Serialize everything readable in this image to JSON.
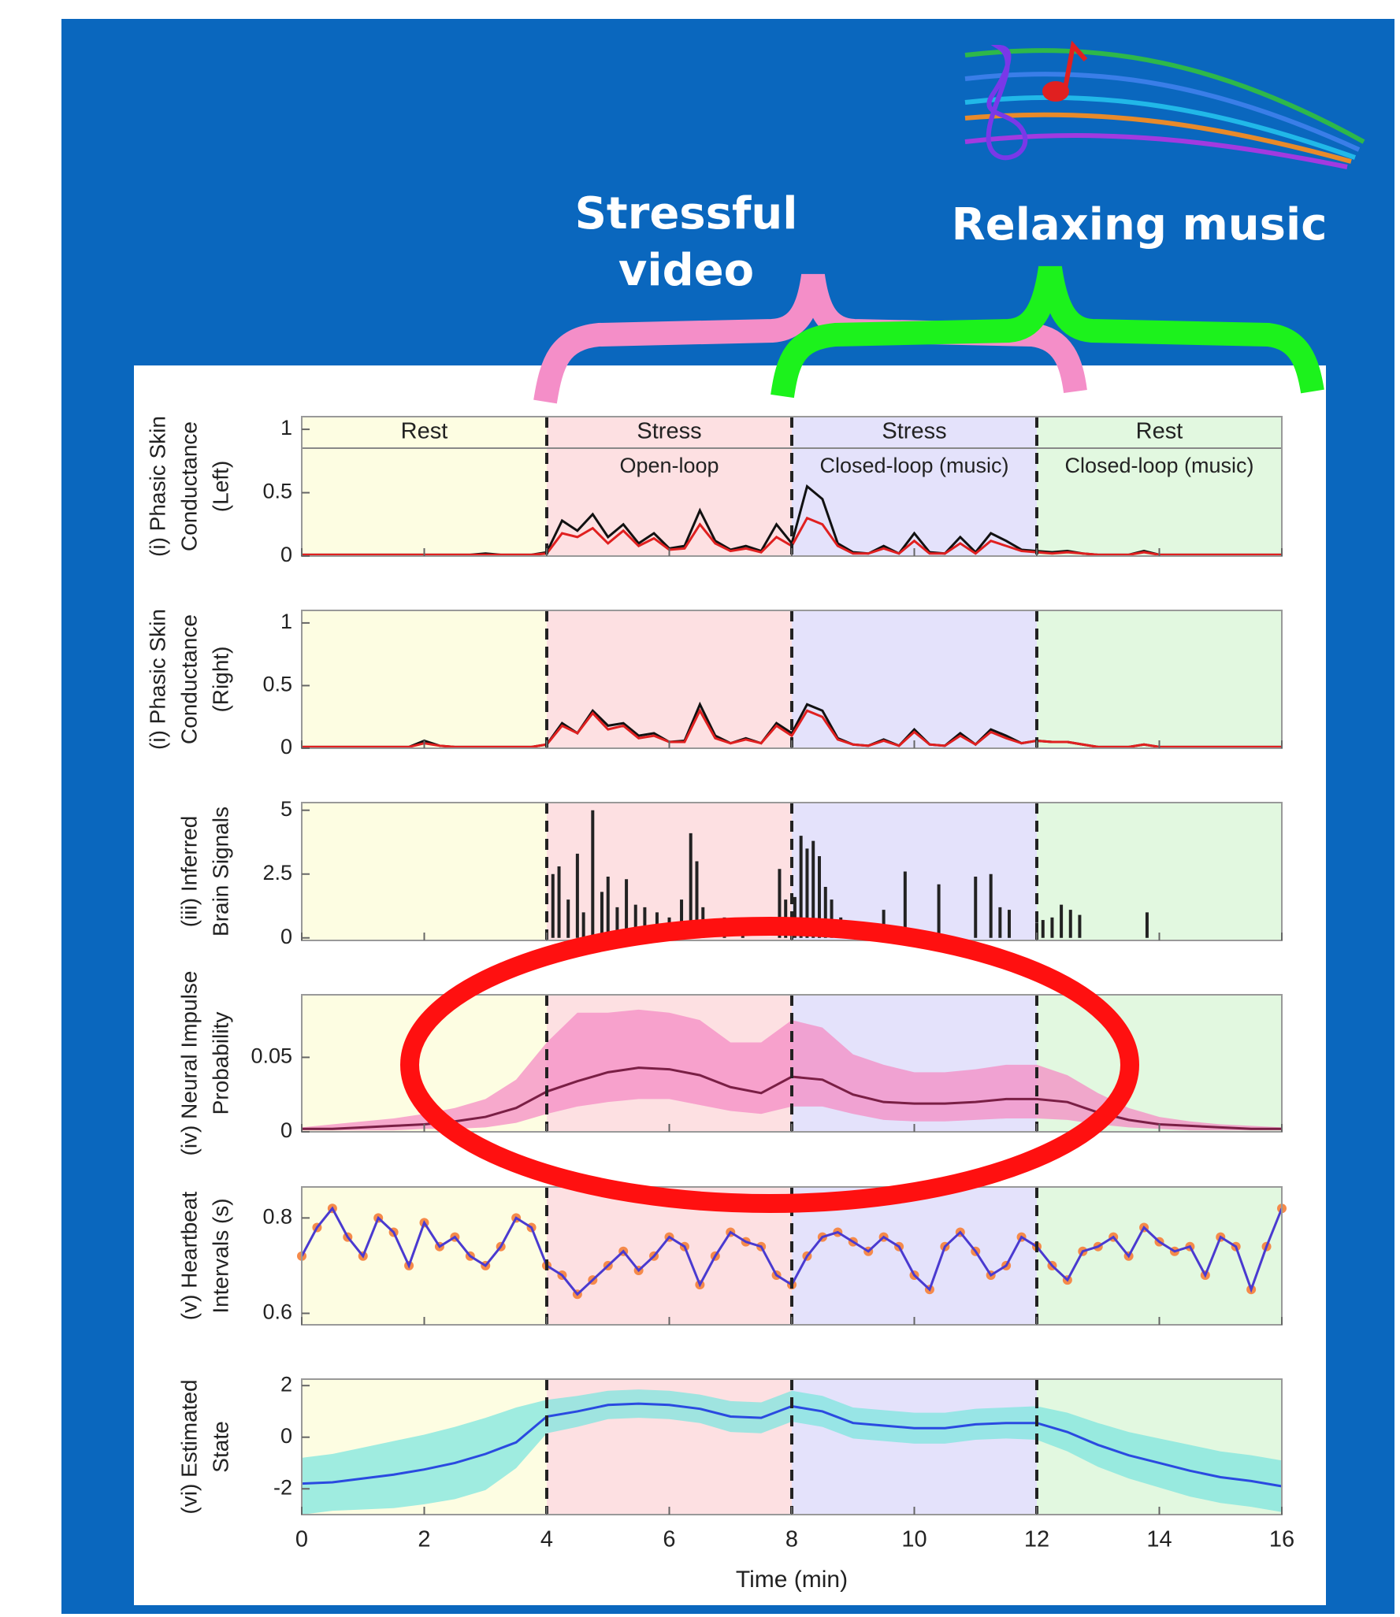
{
  "slide": {
    "annotations": [
      "Stressful video",
      "Relaxing music"
    ]
  },
  "chart_data": [
    {
      "type": "line",
      "ylabel": [
        "(i) Phasic Skin",
        "Conductance",
        "(Left)"
      ],
      "phases": [
        {
          "label": "Rest",
          "start": 0,
          "end": 4,
          "color": "#fdfde2"
        },
        {
          "label": "Stress",
          "sublabel": "Open-loop",
          "start": 4,
          "end": 8,
          "color": "#fde0e2"
        },
        {
          "label": "Stress",
          "sublabel": "Closed-loop (music)",
          "start": 8,
          "end": 12,
          "color": "#e4e2fb"
        },
        {
          "label": "Rest",
          "sublabel": "Closed-loop (music)",
          "start": 12,
          "end": 16,
          "color": "#e2f8e0"
        }
      ],
      "xlim": [
        0,
        16
      ],
      "xticks": [
        0,
        2,
        4,
        6,
        8,
        10,
        12,
        14,
        16
      ],
      "ylim": [
        0,
        1.1
      ],
      "yticks": [
        0,
        0.5,
        1
      ],
      "x": [
        0,
        0.25,
        0.5,
        0.75,
        1,
        1.25,
        1.5,
        1.75,
        2,
        2.25,
        2.5,
        2.75,
        3,
        3.25,
        3.5,
        3.75,
        4,
        4.25,
        4.5,
        4.75,
        5,
        5.25,
        5.5,
        5.75,
        6,
        6.25,
        6.5,
        6.75,
        7,
        7.25,
        7.5,
        7.75,
        8,
        8.25,
        8.5,
        8.75,
        9,
        9.25,
        9.5,
        9.75,
        10,
        10.25,
        10.5,
        10.75,
        11,
        11.25,
        11.5,
        11.75,
        12,
        12.25,
        12.5,
        12.75,
        13,
        13.25,
        13.5,
        13.75,
        14,
        14.25,
        14.5,
        14.75,
        15,
        15.25,
        15.5,
        15.75,
        16
      ],
      "series": [
        {
          "color": "#111111",
          "values": [
            0.01,
            0.01,
            0.01,
            0.01,
            0.01,
            0.01,
            0.01,
            0.01,
            0.01,
            0.01,
            0.01,
            0.01,
            0.02,
            0.01,
            0.01,
            0.01,
            0.03,
            0.28,
            0.2,
            0.33,
            0.15,
            0.25,
            0.1,
            0.18,
            0.06,
            0.08,
            0.36,
            0.12,
            0.05,
            0.08,
            0.04,
            0.25,
            0.1,
            0.55,
            0.45,
            0.1,
            0.03,
            0.02,
            0.08,
            0.02,
            0.18,
            0.03,
            0.02,
            0.15,
            0.03,
            0.18,
            0.12,
            0.05,
            0.04,
            0.03,
            0.04,
            0.02,
            0.01,
            0.01,
            0.01,
            0.04,
            0.01,
            0.01,
            0.01,
            0.01,
            0.01,
            0.01,
            0.01,
            0.01,
            0.01
          ]
        },
        {
          "color": "#e02020",
          "values": [
            0.01,
            0.01,
            0.01,
            0.01,
            0.01,
            0.01,
            0.01,
            0.01,
            0.01,
            0.01,
            0.01,
            0.01,
            0.01,
            0.01,
            0.01,
            0.01,
            0.02,
            0.18,
            0.15,
            0.22,
            0.1,
            0.2,
            0.08,
            0.14,
            0.05,
            0.06,
            0.25,
            0.1,
            0.04,
            0.06,
            0.03,
            0.15,
            0.08,
            0.3,
            0.25,
            0.08,
            0.02,
            0.02,
            0.06,
            0.02,
            0.12,
            0.02,
            0.02,
            0.1,
            0.02,
            0.12,
            0.08,
            0.04,
            0.03,
            0.02,
            0.03,
            0.02,
            0.01,
            0.01,
            0.01,
            0.03,
            0.01,
            0.01,
            0.01,
            0.01,
            0.01,
            0.01,
            0.01,
            0.01,
            0.01
          ]
        }
      ]
    },
    {
      "type": "line",
      "ylabel": [
        "(i) Phasic Skin",
        "Conductance",
        "(Right)"
      ],
      "xlim": [
        0,
        16
      ],
      "xticks": [
        0,
        2,
        4,
        6,
        8,
        10,
        12,
        14,
        16
      ],
      "ylim": [
        0,
        1.1
      ],
      "yticks": [
        0,
        0.5,
        1
      ],
      "x": [
        0,
        0.25,
        0.5,
        0.75,
        1,
        1.25,
        1.5,
        1.75,
        2,
        2.25,
        2.5,
        2.75,
        3,
        3.25,
        3.5,
        3.75,
        4,
        4.25,
        4.5,
        4.75,
        5,
        5.25,
        5.5,
        5.75,
        6,
        6.25,
        6.5,
        6.75,
        7,
        7.25,
        7.5,
        7.75,
        8,
        8.25,
        8.5,
        8.75,
        9,
        9.25,
        9.5,
        9.75,
        10,
        10.25,
        10.5,
        10.75,
        11,
        11.25,
        11.5,
        11.75,
        12,
        12.25,
        12.5,
        12.75,
        13,
        13.25,
        13.5,
        13.75,
        14,
        14.25,
        14.5,
        14.75,
        15,
        15.25,
        15.5,
        15.75,
        16
      ],
      "series": [
        {
          "color": "#111111",
          "values": [
            0.01,
            0.01,
            0.01,
            0.01,
            0.01,
            0.01,
            0.01,
            0.01,
            0.06,
            0.02,
            0.01,
            0.01,
            0.01,
            0.01,
            0.01,
            0.01,
            0.03,
            0.2,
            0.12,
            0.3,
            0.18,
            0.2,
            0.1,
            0.12,
            0.05,
            0.06,
            0.35,
            0.1,
            0.04,
            0.08,
            0.04,
            0.2,
            0.12,
            0.35,
            0.3,
            0.08,
            0.03,
            0.02,
            0.07,
            0.02,
            0.15,
            0.03,
            0.02,
            0.12,
            0.03,
            0.15,
            0.1,
            0.04,
            0.06,
            0.05,
            0.05,
            0.03,
            0.01,
            0.01,
            0.01,
            0.03,
            0.01,
            0.01,
            0.01,
            0.01,
            0.01,
            0.01,
            0.01,
            0.01,
            0.01
          ]
        },
        {
          "color": "#e02020",
          "values": [
            0.01,
            0.01,
            0.01,
            0.01,
            0.01,
            0.01,
            0.01,
            0.01,
            0.04,
            0.02,
            0.01,
            0.01,
            0.01,
            0.01,
            0.01,
            0.01,
            0.03,
            0.18,
            0.12,
            0.28,
            0.15,
            0.18,
            0.08,
            0.1,
            0.05,
            0.05,
            0.3,
            0.08,
            0.04,
            0.07,
            0.04,
            0.18,
            0.1,
            0.3,
            0.25,
            0.07,
            0.03,
            0.02,
            0.06,
            0.02,
            0.13,
            0.03,
            0.02,
            0.1,
            0.03,
            0.13,
            0.08,
            0.04,
            0.06,
            0.05,
            0.05,
            0.03,
            0.01,
            0.01,
            0.01,
            0.03,
            0.01,
            0.01,
            0.01,
            0.01,
            0.01,
            0.01,
            0.01,
            0.01,
            0.01
          ]
        }
      ]
    },
    {
      "type": "bar",
      "ylabel": [
        "(iii) Inferred",
        "Brain Signals"
      ],
      "xlim": [
        0,
        16
      ],
      "xticks": [
        0,
        2,
        4,
        6,
        8,
        10,
        12,
        14,
        16
      ],
      "ylim": [
        -0.1,
        5.3
      ],
      "yticks": [
        0,
        {
          "value": 2.5,
          "label": "2.5"
        },
        5
      ],
      "x": [
        4.1,
        4.2,
        4.35,
        4.5,
        4.6,
        4.75,
        4.9,
        5.0,
        5.15,
        5.3,
        5.45,
        5.6,
        5.8,
        6.0,
        6.2,
        6.35,
        6.45,
        6.55,
        6.9,
        7.2,
        7.8,
        7.9,
        8.05,
        8.15,
        8.25,
        8.35,
        8.45,
        8.55,
        8.65,
        8.8,
        9.5,
        9.85,
        10.4,
        11.0,
        11.25,
        11.4,
        11.55,
        12.0,
        12.1,
        12.25,
        12.4,
        12.55,
        12.7,
        13.8
      ],
      "series": [
        {
          "color": "#222222",
          "values": [
            2.5,
            2.8,
            1.5,
            3.3,
            1.0,
            5.0,
            1.8,
            2.4,
            1.2,
            2.3,
            1.3,
            1.2,
            1.0,
            0.8,
            1.5,
            4.1,
            3.0,
            1.2,
            0.8,
            0.7,
            2.7,
            1.5,
            1.6,
            4.0,
            3.5,
            3.8,
            3.2,
            2.0,
            1.5,
            0.8,
            1.1,
            2.6,
            2.1,
            2.4,
            2.5,
            1.2,
            1.1,
            0.6,
            0.7,
            0.8,
            1.3,
            1.1,
            0.9,
            1.0
          ]
        }
      ]
    },
    {
      "type": "line",
      "ylabel": [
        "(iv) Neural Impulse",
        "Probability"
      ],
      "xlim": [
        0,
        16
      ],
      "xticks": [
        0,
        2,
        4,
        6,
        8,
        10,
        12,
        14,
        16
      ],
      "ylim": [
        0,
        0.092
      ],
      "yticks": [
        0,
        0.05
      ],
      "x": [
        0,
        0.5,
        1,
        1.5,
        2,
        2.5,
        3,
        3.5,
        4,
        4.5,
        5,
        5.5,
        6,
        6.5,
        7,
        7.5,
        8,
        8.5,
        9,
        9.5,
        10,
        10.5,
        11,
        11.5,
        12,
        12.5,
        13,
        13.5,
        14,
        14.5,
        15,
        15.5,
        16
      ],
      "band": {
        "color": "#f48cc4",
        "upper": [
          0.003,
          0.005,
          0.007,
          0.009,
          0.012,
          0.016,
          0.022,
          0.035,
          0.06,
          0.08,
          0.08,
          0.082,
          0.08,
          0.075,
          0.06,
          0.06,
          0.075,
          0.07,
          0.052,
          0.045,
          0.04,
          0.04,
          0.042,
          0.045,
          0.045,
          0.038,
          0.026,
          0.016,
          0.01,
          0.007,
          0.005,
          0.004,
          0.003
        ],
        "lower": [
          0.001,
          0.001,
          0.001,
          0.001,
          0.002,
          0.002,
          0.003,
          0.006,
          0.012,
          0.017,
          0.02,
          0.022,
          0.022,
          0.018,
          0.014,
          0.012,
          0.017,
          0.017,
          0.012,
          0.008,
          0.007,
          0.007,
          0.008,
          0.009,
          0.009,
          0.008,
          0.005,
          0.003,
          0.002,
          0.001,
          0.001,
          0.001,
          0.001
        ]
      },
      "series": [
        {
          "color": "#7a1f45",
          "values": [
            0.002,
            0.002,
            0.003,
            0.004,
            0.005,
            0.007,
            0.01,
            0.016,
            0.027,
            0.034,
            0.04,
            0.043,
            0.042,
            0.038,
            0.03,
            0.026,
            0.037,
            0.035,
            0.025,
            0.02,
            0.019,
            0.019,
            0.02,
            0.022,
            0.022,
            0.02,
            0.013,
            0.008,
            0.005,
            0.004,
            0.003,
            0.002,
            0.002
          ]
        }
      ]
    },
    {
      "type": "line",
      "ylabel": [
        "(v) Heartbeat",
        "Intervals (s)"
      ],
      "xlim": [
        0,
        16
      ],
      "xticks": [
        0,
        2,
        4,
        6,
        8,
        10,
        12,
        14,
        16
      ],
      "ylim": [
        0.576,
        0.865
      ],
      "yticks": [
        0.6,
        0.8
      ],
      "x": [
        0,
        0.25,
        0.5,
        0.75,
        1,
        1.25,
        1.5,
        1.75,
        2,
        2.25,
        2.5,
        2.75,
        3,
        3.25,
        3.5,
        3.75,
        4,
        4.25,
        4.5,
        4.75,
        5,
        5.25,
        5.5,
        5.75,
        6,
        6.25,
        6.5,
        6.75,
        7,
        7.25,
        7.5,
        7.75,
        8,
        8.25,
        8.5,
        8.75,
        9,
        9.25,
        9.5,
        9.75,
        10,
        10.25,
        10.5,
        10.75,
        11,
        11.25,
        11.5,
        11.75,
        12,
        12.25,
        12.5,
        12.75,
        13,
        13.25,
        13.5,
        13.75,
        14,
        14.25,
        14.5,
        14.75,
        15,
        15.25,
        15.5,
        15.75,
        16
      ],
      "series": [
        {
          "color": "#4a3ad0",
          "marker_color": "#f58a4a",
          "values": [
            0.72,
            0.78,
            0.82,
            0.76,
            0.72,
            0.8,
            0.77,
            0.7,
            0.79,
            0.74,
            0.76,
            0.72,
            0.7,
            0.74,
            0.8,
            0.78,
            0.7,
            0.68,
            0.64,
            0.67,
            0.7,
            0.73,
            0.69,
            0.72,
            0.76,
            0.74,
            0.66,
            0.72,
            0.77,
            0.75,
            0.74,
            0.68,
            0.66,
            0.72,
            0.76,
            0.77,
            0.75,
            0.73,
            0.76,
            0.74,
            0.68,
            0.65,
            0.74,
            0.77,
            0.73,
            0.68,
            0.7,
            0.76,
            0.74,
            0.7,
            0.67,
            0.73,
            0.74,
            0.76,
            0.72,
            0.78,
            0.75,
            0.73,
            0.74,
            0.68,
            0.76,
            0.74,
            0.65,
            0.74,
            0.82
          ]
        }
      ]
    },
    {
      "type": "line",
      "ylabel": [
        "(vi) Estimated",
        "State"
      ],
      "xlabel": "Time (min)",
      "xlim": [
        0,
        16
      ],
      "xticks": [
        0,
        2,
        4,
        6,
        8,
        10,
        12,
        14,
        16
      ],
      "ylim": [
        -3,
        2.25
      ],
      "yticks": [
        -2,
        0,
        2
      ],
      "x": [
        0,
        0.5,
        1,
        1.5,
        2,
        2.5,
        3,
        3.5,
        4,
        4.5,
        5,
        5.5,
        6,
        6.5,
        7,
        7.5,
        8,
        8.5,
        9,
        9.5,
        10,
        10.5,
        11,
        11.5,
        12,
        12.5,
        13,
        13.5,
        14,
        14.5,
        15,
        15.5,
        16
      ],
      "band": {
        "color": "#7fe6df",
        "upper": [
          -0.8,
          -0.65,
          -0.4,
          -0.15,
          0.1,
          0.4,
          0.75,
          1.15,
          1.45,
          1.6,
          1.8,
          1.85,
          1.8,
          1.65,
          1.4,
          1.35,
          1.8,
          1.6,
          1.15,
          1.05,
          0.95,
          0.95,
          1.1,
          1.15,
          1.2,
          0.95,
          0.55,
          0.2,
          -0.05,
          -0.3,
          -0.55,
          -0.7,
          -0.9
        ],
        "lower": [
          -3,
          -2.85,
          -2.8,
          -2.75,
          -2.6,
          -2.4,
          -2.05,
          -1.2,
          0.15,
          0.4,
          0.7,
          0.75,
          0.7,
          0.55,
          0.2,
          0.15,
          0.6,
          0.4,
          -0.05,
          -0.15,
          -0.25,
          -0.25,
          -0.1,
          -0.05,
          -0.1,
          -0.55,
          -1.15,
          -1.6,
          -1.95,
          -2.3,
          -2.55,
          -2.7,
          -2.9
        ]
      },
      "series": [
        {
          "color": "#2a4ae0",
          "values": [
            -1.8,
            -1.75,
            -1.6,
            -1.45,
            -1.25,
            -1.0,
            -0.65,
            -0.2,
            0.8,
            1.0,
            1.25,
            1.3,
            1.25,
            1.1,
            0.8,
            0.75,
            1.2,
            1.0,
            0.55,
            0.45,
            0.35,
            0.35,
            0.5,
            0.55,
            0.55,
            0.2,
            -0.3,
            -0.7,
            -1.0,
            -1.3,
            -1.55,
            -1.7,
            -1.9
          ]
        }
      ]
    }
  ]
}
